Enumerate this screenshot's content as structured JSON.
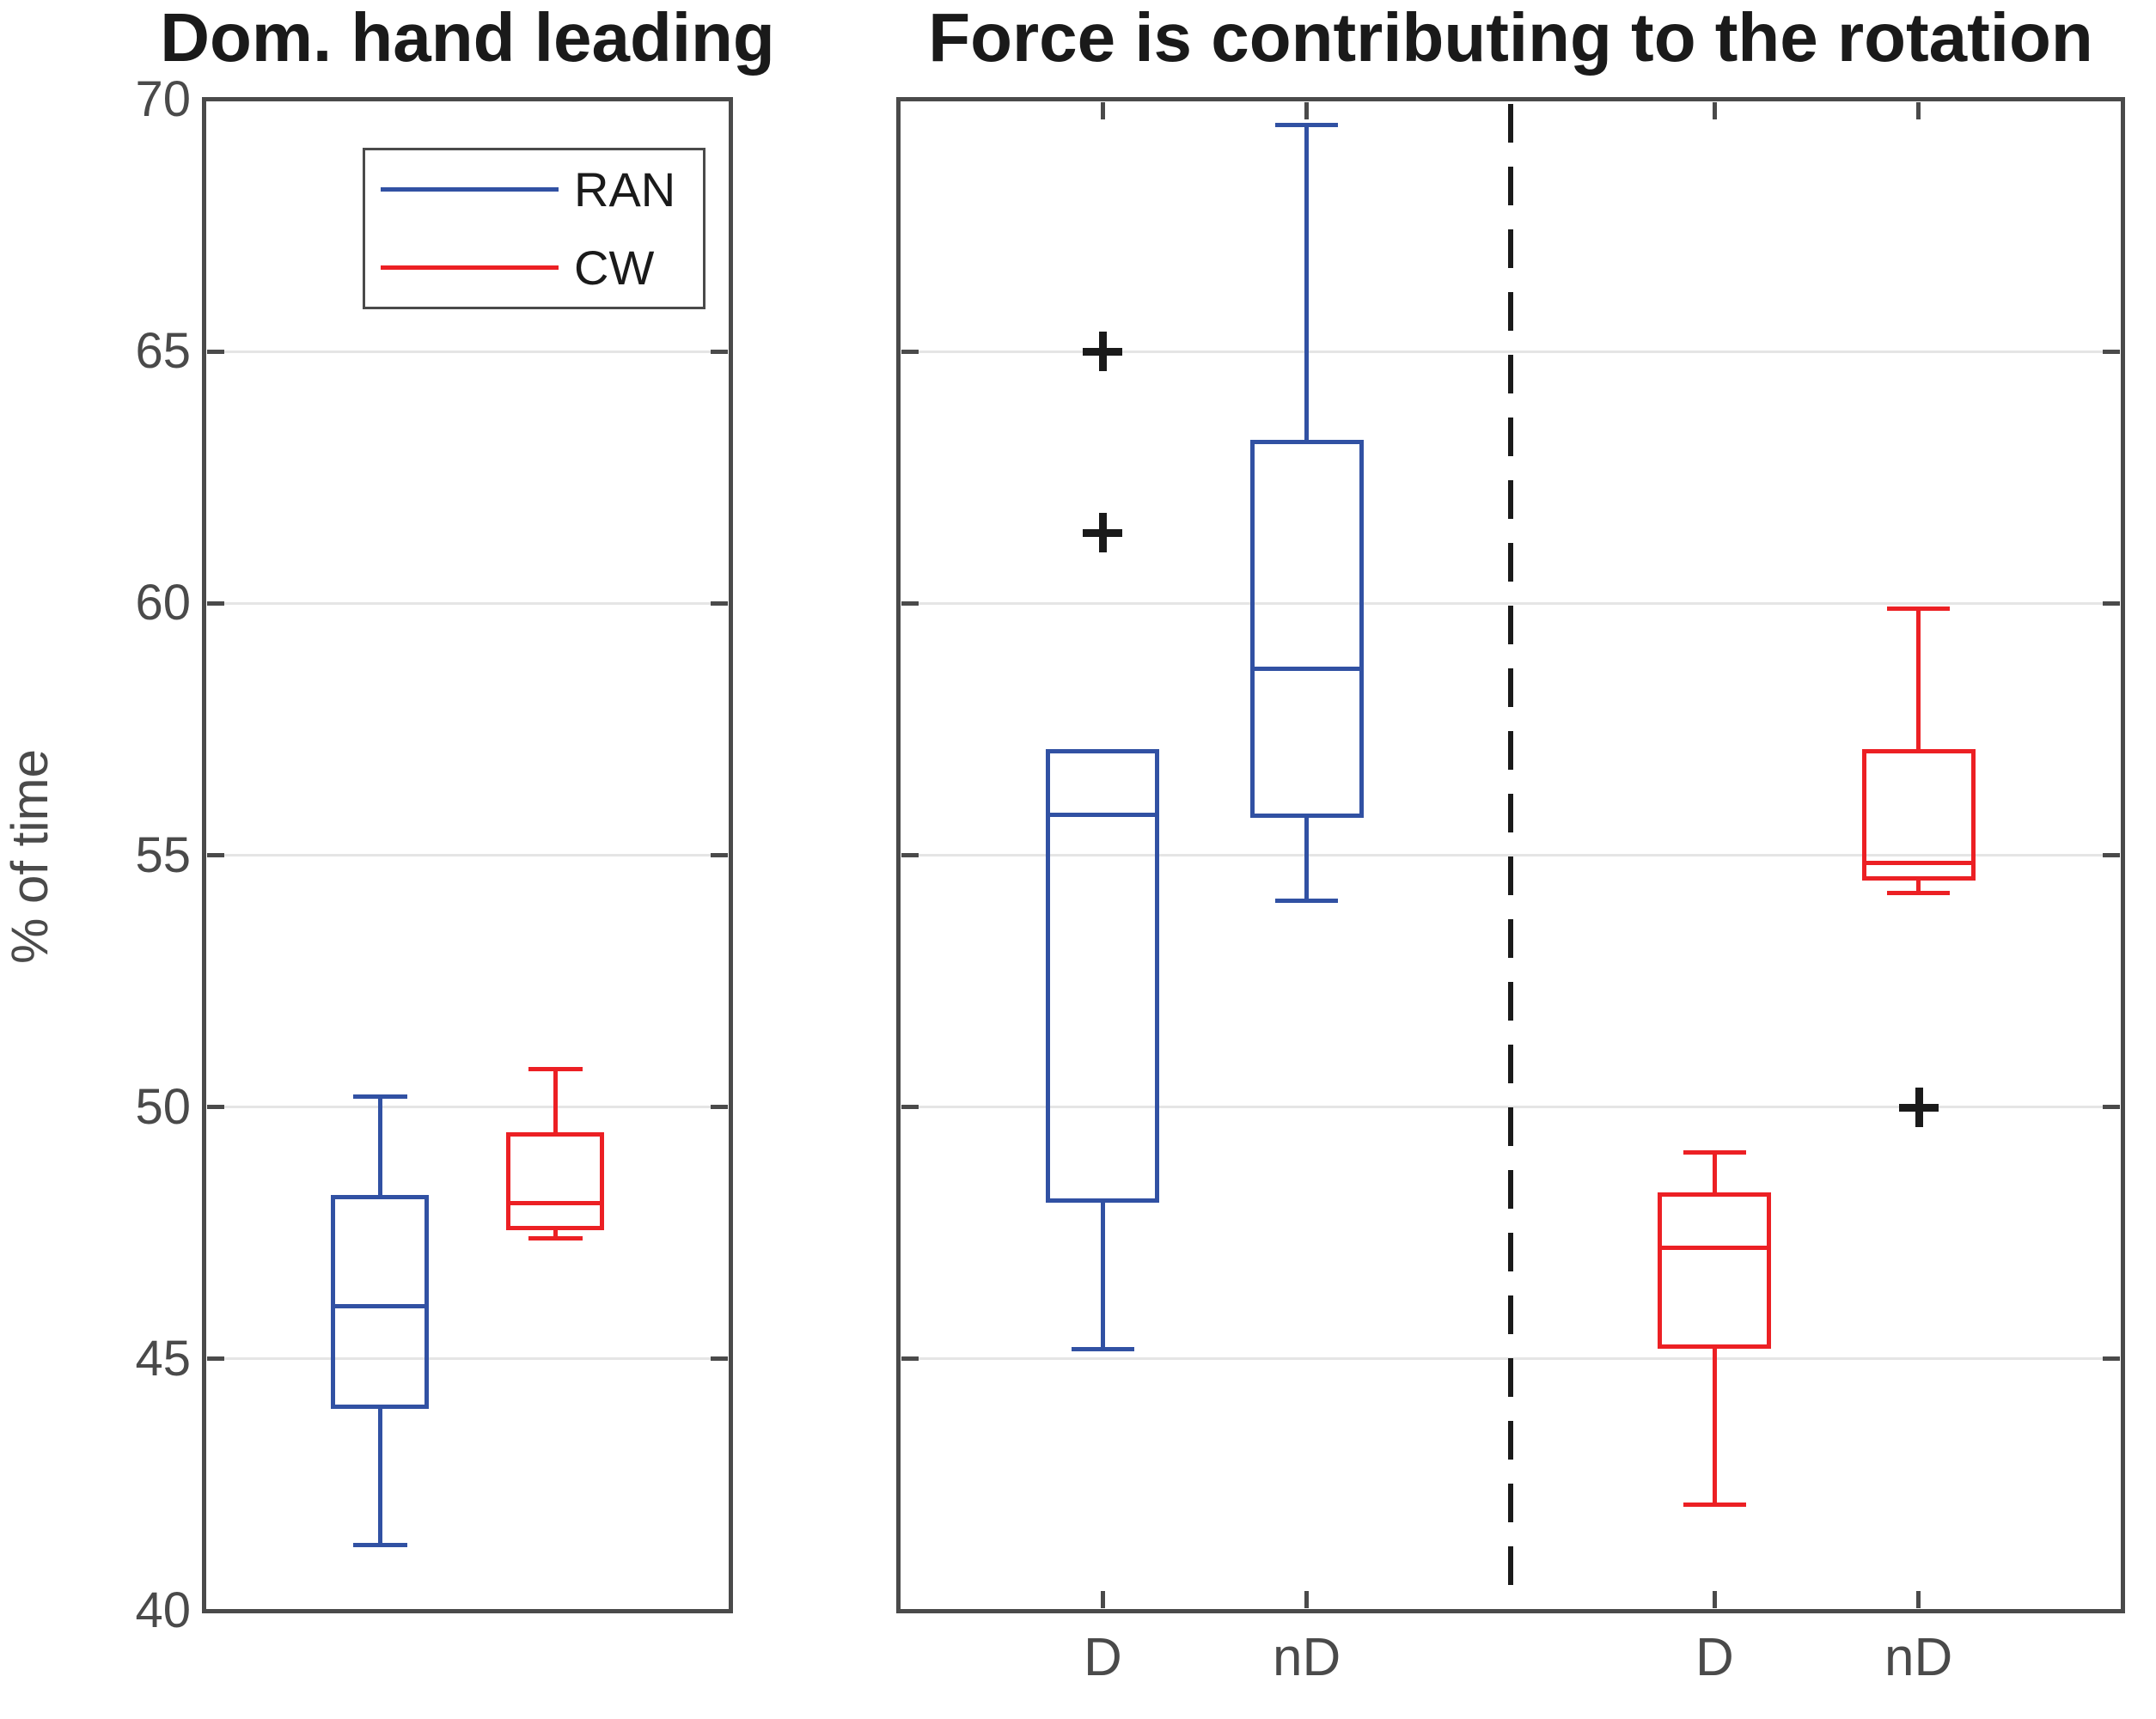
{
  "chart_data": {
    "type": "boxplot",
    "ylabel": "% of time",
    "ylim": [
      40,
      70
    ],
    "yticks": [
      40,
      45,
      50,
      55,
      60,
      65,
      70
    ],
    "gridlines": [
      45,
      50,
      55,
      60,
      65
    ],
    "grid": "horizontal",
    "outlier_marker": "+",
    "legend": [
      {
        "label": "RAN",
        "color": "#3151A3"
      },
      {
        "label": "CW",
        "color": "#EC2024"
      }
    ],
    "series_colors": {
      "RAN": "#3151A3",
      "CW": "#EC2024"
    },
    "marker_color": "#1a1a1a",
    "axis_color": "#4a4a4a",
    "grid_color": "#e5e5e5",
    "panels": [
      {
        "title": "Dom. hand leading",
        "n_slots": 3,
        "boxes": [
          {
            "series": "RAN",
            "label": "",
            "slot": 1,
            "whisker_low": 41.3,
            "q1": 44.0,
            "median": 46.05,
            "q3": 48.25,
            "whisker_high": 50.2,
            "outliers": []
          },
          {
            "series": "CW",
            "label": "",
            "slot": 2,
            "whisker_low": 47.4,
            "q1": 47.55,
            "median": 48.1,
            "q3": 49.5,
            "whisker_high": 50.75,
            "outliers": []
          }
        ]
      },
      {
        "title": "Force is contributing to the rotation",
        "n_slots": 6,
        "divider_slot": 3,
        "boxes": [
          {
            "series": "RAN",
            "label": "D",
            "slot": 1,
            "whisker_low": 45.2,
            "q1": 48.1,
            "median": 55.8,
            "q3": 57.1,
            "whisker_high": 57.1,
            "outliers": [
              61.4,
              65.0
            ]
          },
          {
            "series": "RAN",
            "label": "nD",
            "slot": 2,
            "whisker_low": 54.1,
            "q1": 55.75,
            "median": 58.7,
            "q3": 63.25,
            "whisker_high": 69.5,
            "outliers": []
          },
          {
            "series": "CW",
            "label": "D",
            "slot": 4,
            "whisker_low": 42.1,
            "q1": 45.2,
            "median": 47.2,
            "q3": 48.3,
            "whisker_high": 49.1,
            "outliers": []
          },
          {
            "series": "CW",
            "label": "nD",
            "slot": 5,
            "whisker_low": 54.25,
            "q1": 54.5,
            "median": 54.85,
            "q3": 57.1,
            "whisker_high": 59.9,
            "outliers": [
              50.0
            ]
          }
        ]
      }
    ]
  }
}
